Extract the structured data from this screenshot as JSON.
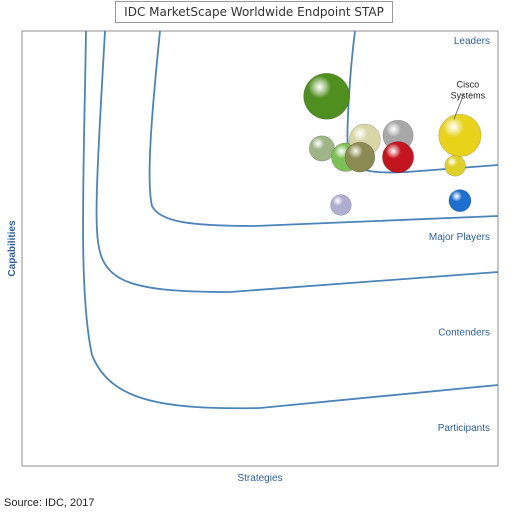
{
  "chart_data": {
    "type": "bubble",
    "title": "IDC MarketScape Worldwide Endpoint STAP",
    "xlabel": "Strategies",
    "ylabel": "Capabilities",
    "source": "Source: IDC, 2017",
    "xlim": [
      0,
      1
    ],
    "ylim": [
      0,
      1
    ],
    "grid": false,
    "zones": [
      "Leaders",
      "Major Players",
      "Contenders",
      "Participants"
    ],
    "points": [
      {
        "label": "",
        "x": 0.64,
        "y": 0.85,
        "size": 1.0,
        "color": "#4f8f1f"
      },
      {
        "label": "",
        "x": 0.63,
        "y": 0.73,
        "size": 0.55,
        "color": "#9fb587"
      },
      {
        "label": "",
        "x": 0.68,
        "y": 0.71,
        "size": 0.62,
        "color": "#7fbf58"
      },
      {
        "label": "",
        "x": 0.72,
        "y": 0.75,
        "size": 0.68,
        "color": "#d8d6a6"
      },
      {
        "label": "",
        "x": 0.71,
        "y": 0.71,
        "size": 0.65,
        "color": "#8a8a52"
      },
      {
        "label": "",
        "x": 0.79,
        "y": 0.76,
        "size": 0.66,
        "color": "#a8a8a8"
      },
      {
        "label": "",
        "x": 0.79,
        "y": 0.71,
        "size": 0.68,
        "color": "#c4141e"
      },
      {
        "label": "Cisco Systems",
        "x": 0.92,
        "y": 0.76,
        "size": 0.92,
        "color": "#e8d21a"
      },
      {
        "label": "",
        "x": 0.91,
        "y": 0.69,
        "size": 0.45,
        "color": "#dfd12a"
      },
      {
        "label": "",
        "x": 0.92,
        "y": 0.61,
        "size": 0.48,
        "color": "#1c6fd0"
      },
      {
        "label": "",
        "x": 0.67,
        "y": 0.6,
        "size": 0.45,
        "color": "#b0aed0"
      }
    ]
  }
}
